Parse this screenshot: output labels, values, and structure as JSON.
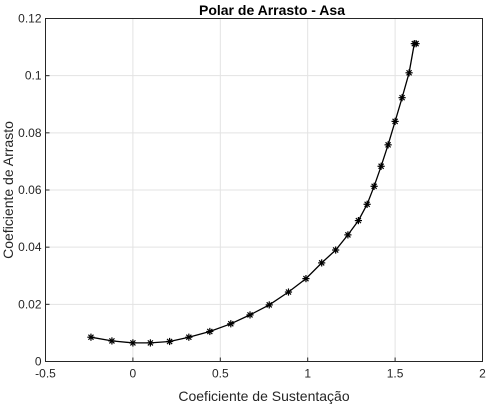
{
  "chart_data": {
    "type": "line",
    "title": "Polar de Arrasto - Asa",
    "xlabel": "Coeficiente de Sustentação",
    "ylabel": "Coeficiente de Arrasto",
    "xlim": [
      -0.5,
      2
    ],
    "ylim": [
      0,
      0.12
    ],
    "xticks": [
      -0.5,
      0,
      0.5,
      1,
      1.5,
      2
    ],
    "yticks": [
      0,
      0.02,
      0.04,
      0.06,
      0.08,
      0.1,
      0.12
    ],
    "xtick_labels": [
      "-0.5",
      "0",
      "0.5",
      "1",
      "1.5",
      "2"
    ],
    "ytick_labels": [
      "0",
      "0.02",
      "0.04",
      "0.06",
      "0.08",
      "0.1",
      "0.12"
    ],
    "grid": true,
    "marker": "asterisk",
    "line_color": "#000000",
    "series": [
      {
        "x": [
          -0.24,
          -0.12,
          0.0,
          0.1,
          0.21,
          0.32,
          0.44,
          0.56,
          0.67,
          0.78,
          0.89,
          0.99,
          1.08,
          1.16,
          1.23,
          1.29,
          1.34,
          1.38,
          1.42,
          1.46,
          1.5,
          1.54,
          1.58,
          1.61,
          1.62
        ],
        "y": [
          0.0085,
          0.0072,
          0.0065,
          0.0065,
          0.007,
          0.0085,
          0.0105,
          0.0132,
          0.0163,
          0.0198,
          0.0243,
          0.029,
          0.0345,
          0.039,
          0.0443,
          0.0493,
          0.055,
          0.0613,
          0.0683,
          0.0758,
          0.084,
          0.0923,
          0.101,
          0.1112,
          0.1112
        ]
      }
    ]
  }
}
